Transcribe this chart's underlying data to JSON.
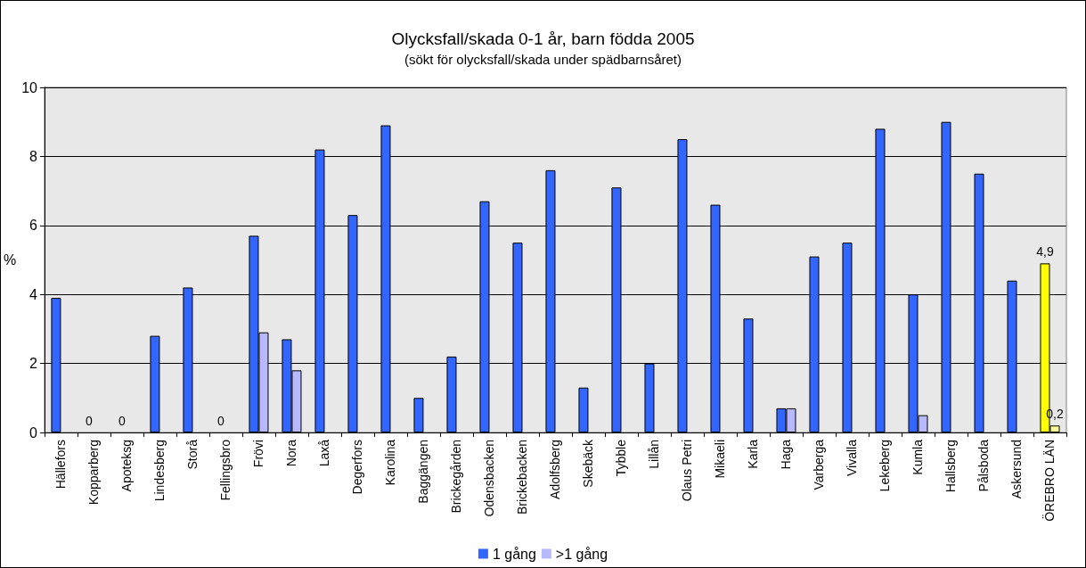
{
  "chart_data": {
    "type": "bar",
    "title": "Olycksfall/skada 0-1 år, barn födda 2005",
    "subtitle": "(sökt för olycksfall/skada under spädbarnsåret)",
    "ylabel": "%",
    "categories": [
      "Hällefors",
      "Kopparberg",
      "Apoteksg",
      "Lindesberg",
      "Storå",
      "Fellingsbro",
      "Frövi",
      "Nora",
      "Laxå",
      "Degerfors",
      "Karolina",
      "Baggängen",
      "Brickegården",
      "Odensbacken",
      "Brickebacken",
      "Adolfsberg",
      "Skebäck",
      "Tybble",
      "Lillån",
      "Olaus Petri",
      "Mikaeli",
      "Karla",
      "Haga",
      "Varberga",
      "Vivalla",
      "Lekeberg",
      "Kumla",
      "Hallsberg",
      "Pålsboda",
      "Askersund",
      "ÖREBRO LÄN"
    ],
    "series": [
      {
        "name": "1 gång",
        "color": "#3366ff",
        "colors": [
          "#3366ff",
          "#3366ff",
          "#3366ff",
          "#3366ff",
          "#3366ff",
          "#3366ff",
          "#3366ff",
          "#3366ff",
          "#3366ff",
          "#3366ff",
          "#3366ff",
          "#3366ff",
          "#3366ff",
          "#3366ff",
          "#3366ff",
          "#3366ff",
          "#3366ff",
          "#3366ff",
          "#3366ff",
          "#3366ff",
          "#3366ff",
          "#3366ff",
          "#3366ff",
          "#3366ff",
          "#3366ff",
          "#3366ff",
          "#3366ff",
          "#3366ff",
          "#3366ff",
          "#3366ff",
          "#ffff00"
        ],
        "values": [
          3.9,
          0,
          0,
          2.8,
          4.2,
          0,
          5.7,
          2.7,
          8.2,
          6.3,
          8.9,
          1.0,
          2.2,
          6.7,
          5.5,
          7.6,
          1.3,
          7.1,
          2.0,
          8.5,
          6.6,
          3.3,
          0.7,
          5.1,
          5.5,
          8.8,
          4.0,
          9.0,
          7.5,
          4.4,
          4.9
        ],
        "value_labels": [
          null,
          "0",
          "0",
          null,
          null,
          "0",
          null,
          null,
          null,
          null,
          null,
          null,
          null,
          null,
          null,
          null,
          null,
          null,
          null,
          null,
          null,
          null,
          null,
          null,
          null,
          null,
          null,
          null,
          null,
          null,
          "4,9"
        ]
      },
      {
        "name": ">1 gång",
        "color": "#b8b8ff",
        "colors": [
          "#b8b8ff",
          "#b8b8ff",
          "#b8b8ff",
          "#b8b8ff",
          "#b8b8ff",
          "#b8b8ff",
          "#b8b8ff",
          "#b8b8ff",
          "#b8b8ff",
          "#b8b8ff",
          "#b8b8ff",
          "#b8b8ff",
          "#b8b8ff",
          "#b8b8ff",
          "#b8b8ff",
          "#b8b8ff",
          "#b8b8ff",
          "#b8b8ff",
          "#b8b8ff",
          "#b8b8ff",
          "#b8b8ff",
          "#b8b8ff",
          "#b8b8ff",
          "#b8b8ff",
          "#b8b8ff",
          "#b8b8ff",
          "#b8b8ff",
          "#b8b8ff",
          "#b8b8ff",
          "#b8b8ff",
          "#ffff99"
        ],
        "values": [
          0,
          0,
          0,
          0,
          0,
          0,
          2.9,
          1.8,
          0,
          0,
          0,
          0,
          0,
          0,
          0,
          0,
          0,
          0,
          0,
          0,
          0,
          0,
          0.7,
          0,
          0,
          0,
          0.5,
          0,
          0,
          0,
          0.2
        ],
        "value_labels": [
          null,
          null,
          null,
          null,
          null,
          null,
          null,
          null,
          null,
          null,
          null,
          null,
          null,
          null,
          null,
          null,
          null,
          null,
          null,
          null,
          null,
          null,
          null,
          null,
          null,
          null,
          null,
          null,
          null,
          null,
          "0,2"
        ]
      }
    ],
    "ylim": [
      0,
      10
    ],
    "yticks": [
      0,
      2,
      4,
      6,
      8,
      10
    ],
    "grid": "y",
    "legend": "bottom"
  }
}
